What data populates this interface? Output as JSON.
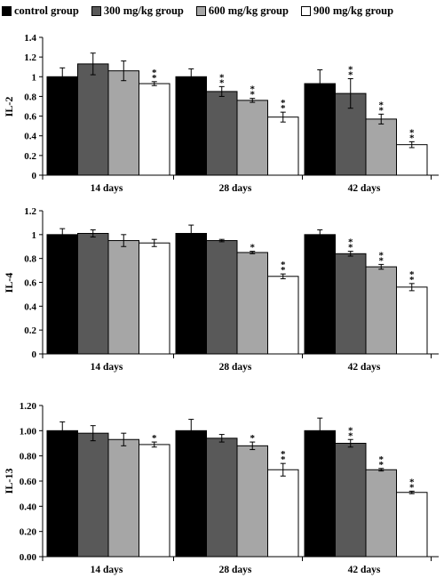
{
  "legend": {
    "items": [
      {
        "label": "control group",
        "color": "#000000"
      },
      {
        "label": "300 mg/kg group",
        "color": "#595959"
      },
      {
        "label": "600 mg/kg group",
        "color": "#a6a6a6"
      },
      {
        "label": "900 mg/kg group",
        "color": "#ffffff"
      }
    ]
  },
  "chart_data": [
    {
      "type": "bar",
      "ylabel": "IL-2",
      "categories": [
        "14 days",
        "28 days",
        "42 days"
      ],
      "ylim": [
        0,
        1.4
      ],
      "yticks": [
        "0",
        "0.2",
        "0.4",
        "0.6",
        "0.8",
        "1",
        "1.2",
        "1.4"
      ],
      "series": [
        {
          "name": "control group",
          "values": [
            1.0,
            1.0,
            0.93
          ],
          "errors": [
            0.09,
            0.08,
            0.14
          ],
          "sig": [
            "",
            "",
            ""
          ]
        },
        {
          "name": "300 mg/kg group",
          "values": [
            1.13,
            0.85,
            0.83
          ],
          "errors": [
            0.11,
            0.05,
            0.15
          ],
          "sig": [
            "",
            "**",
            "**"
          ]
        },
        {
          "name": "600 mg/kg group",
          "values": [
            1.06,
            0.76,
            0.57
          ],
          "errors": [
            0.1,
            0.02,
            0.05
          ],
          "sig": [
            "",
            "**",
            "**"
          ]
        },
        {
          "name": "900 mg/kg group",
          "values": [
            0.93,
            0.59,
            0.31
          ],
          "errors": [
            0.02,
            0.05,
            0.03
          ],
          "sig": [
            "**",
            "**",
            "**"
          ]
        }
      ]
    },
    {
      "type": "bar",
      "ylabel": "IL-4",
      "categories": [
        "14 days",
        "28 days",
        "42 days"
      ],
      "ylim": [
        0,
        1.2
      ],
      "yticks": [
        "0",
        "0.2",
        "0.4",
        "0.6",
        "0.8",
        "1",
        "1.2"
      ],
      "series": [
        {
          "name": "control group",
          "values": [
            1.0,
            1.01,
            1.0
          ],
          "errors": [
            0.05,
            0.07,
            0.04
          ],
          "sig": [
            "",
            "",
            ""
          ]
        },
        {
          "name": "300 mg/kg group",
          "values": [
            1.01,
            0.95,
            0.84
          ],
          "errors": [
            0.03,
            0.01,
            0.02
          ],
          "sig": [
            "",
            "",
            "**"
          ]
        },
        {
          "name": "600 mg/kg group",
          "values": [
            0.95,
            0.85,
            0.73
          ],
          "errors": [
            0.05,
            0.01,
            0.02
          ],
          "sig": [
            "",
            "*",
            "**"
          ]
        },
        {
          "name": "900 mg/kg group",
          "values": [
            0.93,
            0.65,
            0.56
          ],
          "errors": [
            0.03,
            0.02,
            0.03
          ],
          "sig": [
            "",
            "**",
            "**"
          ]
        }
      ]
    },
    {
      "type": "bar",
      "ylabel": "IL-13",
      "categories": [
        "14 days",
        "28 days",
        "42 days"
      ],
      "ylim": [
        0,
        1.2
      ],
      "yticks": [
        "0.00",
        "0.20",
        "0.40",
        "0.60",
        "0.80",
        "1.00",
        "1.20"
      ],
      "series": [
        {
          "name": "control group",
          "values": [
            1.0,
            1.0,
            1.0
          ],
          "errors": [
            0.07,
            0.09,
            0.1
          ],
          "sig": [
            "",
            "",
            ""
          ]
        },
        {
          "name": "300 mg/kg group",
          "values": [
            0.98,
            0.94,
            0.9
          ],
          "errors": [
            0.06,
            0.03,
            0.03
          ],
          "sig": [
            "",
            "",
            "**"
          ]
        },
        {
          "name": "600 mg/kg group",
          "values": [
            0.93,
            0.88,
            0.69
          ],
          "errors": [
            0.05,
            0.03,
            0.01
          ],
          "sig": [
            "",
            "*",
            "**"
          ]
        },
        {
          "name": "900 mg/kg group",
          "values": [
            0.89,
            0.69,
            0.51
          ],
          "errors": [
            0.02,
            0.05,
            0.01
          ],
          "sig": [
            "*",
            "**",
            "**"
          ]
        }
      ]
    }
  ]
}
